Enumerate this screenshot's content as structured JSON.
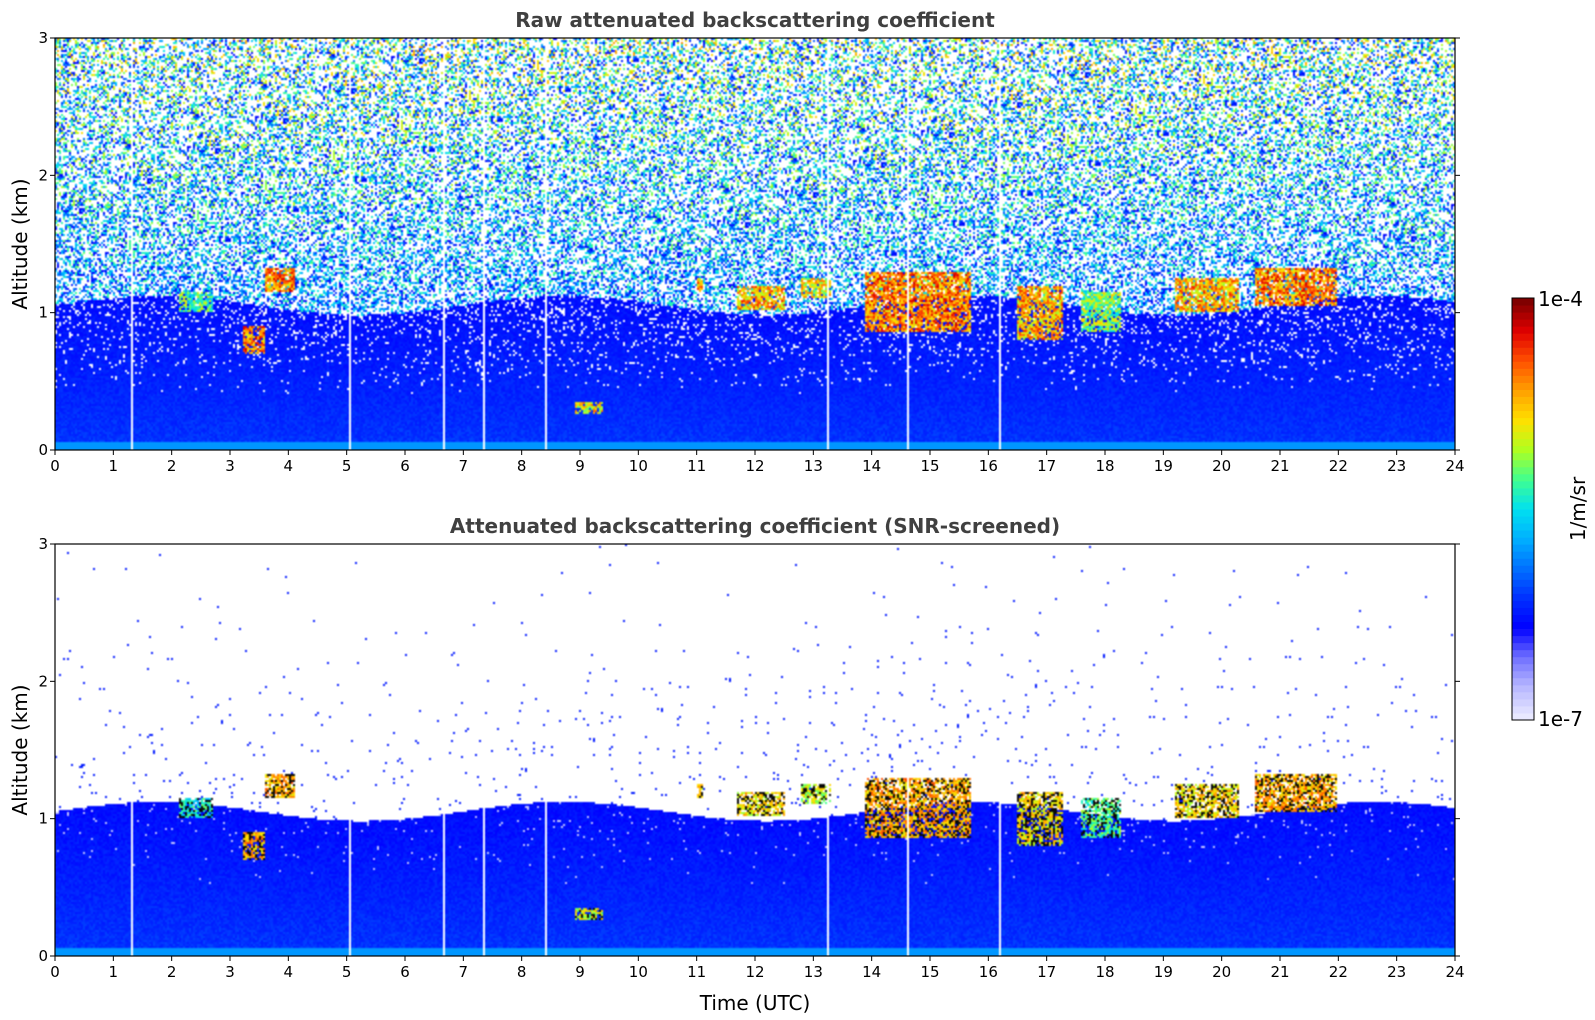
{
  "chart_data": [
    {
      "type": "heatmap",
      "title": "Raw attenuated backscattering coefficient",
      "xlabel": "",
      "ylabel": "Altitude (km)",
      "xlim": [
        0,
        24
      ],
      "ylim": [
        0,
        3
      ],
      "x_ticks": [
        "0",
        "1",
        "2",
        "3",
        "4",
        "5",
        "6",
        "7",
        "8",
        "9",
        "10",
        "11",
        "12",
        "13",
        "14",
        "15",
        "16",
        "17",
        "18",
        "19",
        "20",
        "21",
        "22",
        "23",
        "24"
      ],
      "y_ticks": [
        "0",
        "1",
        "2",
        "3"
      ],
      "screened": false,
      "data_gaps_utc": [
        1.3,
        5.05,
        6.65,
        7.35,
        8.4,
        13.25,
        14.62,
        16.2
      ],
      "cloud_layers": [
        {
          "t0": 2.1,
          "t1": 2.7,
          "base": 1.0,
          "top": 1.15,
          "intensity": 0.7
        },
        {
          "t0": 3.2,
          "t1": 3.6,
          "base": 0.7,
          "top": 0.9,
          "intensity": 0.95
        },
        {
          "t0": 3.6,
          "t1": 4.1,
          "base": 1.15,
          "top": 1.32,
          "intensity": 0.95
        },
        {
          "t0": 8.9,
          "t1": 9.4,
          "base": 0.25,
          "top": 0.35,
          "intensity": 0.85
        },
        {
          "t0": 11.0,
          "t1": 11.1,
          "base": 1.15,
          "top": 1.25,
          "intensity": 0.9
        },
        {
          "t0": 11.7,
          "t1": 12.5,
          "base": 1.02,
          "top": 1.2,
          "intensity": 0.9
        },
        {
          "t0": 12.8,
          "t1": 13.3,
          "base": 1.1,
          "top": 1.25,
          "intensity": 0.85
        },
        {
          "t0": 13.9,
          "t1": 15.7,
          "base": 0.85,
          "top": 1.3,
          "intensity": 0.95
        },
        {
          "t0": 16.5,
          "t1": 17.3,
          "base": 0.8,
          "top": 1.2,
          "intensity": 0.9
        },
        {
          "t0": 17.6,
          "t1": 18.3,
          "base": 0.85,
          "top": 1.15,
          "intensity": 0.75
        },
        {
          "t0": 19.2,
          "t1": 20.3,
          "base": 1.0,
          "top": 1.25,
          "intensity": 0.9
        },
        {
          "t0": 20.6,
          "t1": 22.0,
          "base": 1.05,
          "top": 1.33,
          "intensity": 0.95
        }
      ]
    },
    {
      "type": "heatmap",
      "title": "Attenuated backscattering coefficient (SNR-screened)",
      "xlabel": "Time (UTC)",
      "ylabel": "Altitude (km)",
      "xlim": [
        0,
        24
      ],
      "ylim": [
        0,
        3
      ],
      "x_ticks": [
        "0",
        "1",
        "2",
        "3",
        "4",
        "5",
        "6",
        "7",
        "8",
        "9",
        "10",
        "11",
        "12",
        "13",
        "14",
        "15",
        "16",
        "17",
        "18",
        "19",
        "20",
        "21",
        "22",
        "23",
        "24"
      ],
      "y_ticks": [
        "0",
        "1",
        "2",
        "3"
      ],
      "screened": true,
      "data_gaps_utc": [
        1.3,
        5.05,
        6.65,
        7.35,
        8.4,
        13.25,
        14.62,
        16.2
      ],
      "cloud_layers": [
        {
          "t0": 2.1,
          "t1": 2.7,
          "base": 1.0,
          "top": 1.15,
          "intensity": 0.7
        },
        {
          "t0": 3.2,
          "t1": 3.6,
          "base": 0.7,
          "top": 0.9,
          "intensity": 0.95
        },
        {
          "t0": 3.6,
          "t1": 4.1,
          "base": 1.15,
          "top": 1.32,
          "intensity": 0.95
        },
        {
          "t0": 8.9,
          "t1": 9.4,
          "base": 0.25,
          "top": 0.35,
          "intensity": 0.85
        },
        {
          "t0": 11.0,
          "t1": 11.1,
          "base": 1.15,
          "top": 1.25,
          "intensity": 0.9
        },
        {
          "t0": 11.7,
          "t1": 12.5,
          "base": 1.02,
          "top": 1.2,
          "intensity": 0.9
        },
        {
          "t0": 12.8,
          "t1": 13.3,
          "base": 1.1,
          "top": 1.25,
          "intensity": 0.85
        },
        {
          "t0": 13.9,
          "t1": 15.7,
          "base": 0.85,
          "top": 1.3,
          "intensity": 0.95
        },
        {
          "t0": 16.5,
          "t1": 17.3,
          "base": 0.8,
          "top": 1.2,
          "intensity": 0.9
        },
        {
          "t0": 17.6,
          "t1": 18.3,
          "base": 0.85,
          "top": 1.15,
          "intensity": 0.75
        },
        {
          "t0": 19.2,
          "t1": 20.3,
          "base": 1.0,
          "top": 1.25,
          "intensity": 0.9
        },
        {
          "t0": 20.6,
          "t1": 22.0,
          "base": 1.05,
          "top": 1.33,
          "intensity": 0.95
        }
      ]
    }
  ],
  "colorbar": {
    "label": "1/m/sr",
    "max_label": "1e-4",
    "min_label": "1e-7",
    "colors": [
      "#e8e8ff",
      "#b8b8ff",
      "#7070ff",
      "#0000ff",
      "#0030ff",
      "#0070ff",
      "#00b0ff",
      "#00e0f0",
      "#40ff90",
      "#b0ff20",
      "#ffe000",
      "#ffa000",
      "#ff5000",
      "#e00000",
      "#800000"
    ]
  }
}
